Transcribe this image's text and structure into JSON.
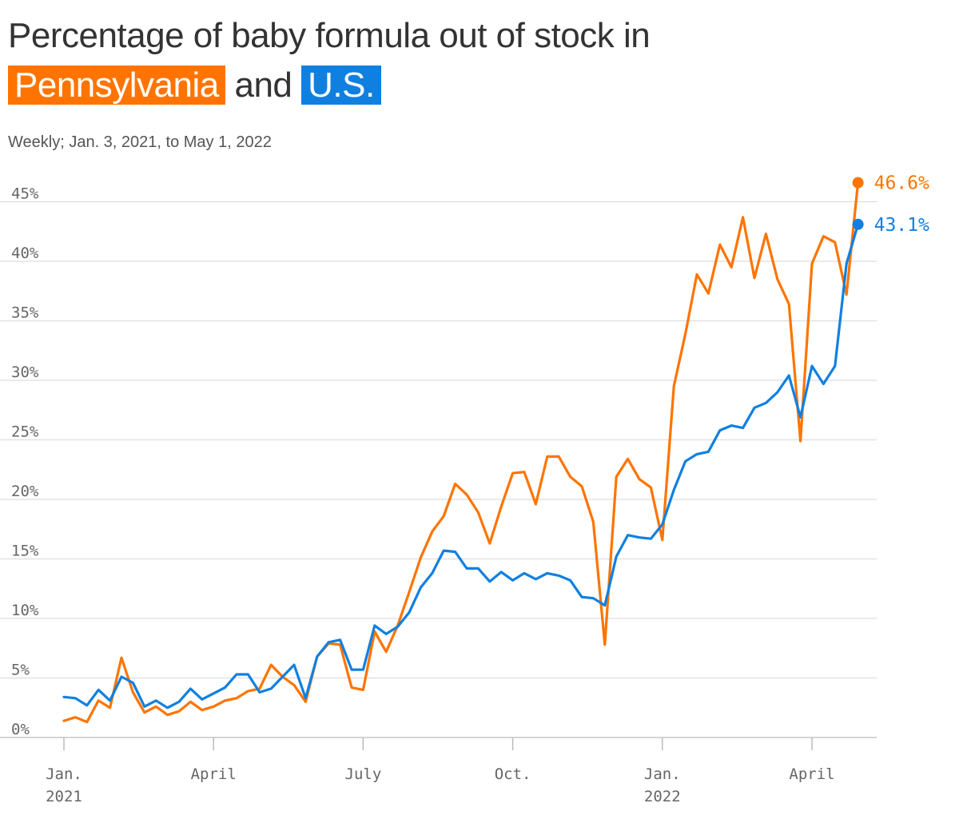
{
  "title": {
    "prefix": "Percentage of baby formula out of stock in",
    "series_a": "Pennsylvania",
    "join": "and",
    "series_b": "U.S."
  },
  "subtitle": "Weekly; Jan. 3, 2021, to May 1, 2022",
  "colors": {
    "pennsylvania": "#ff7400",
    "us": "#1080e0",
    "grid": "#dddddd",
    "text": "#333333"
  },
  "chart_data": {
    "type": "line",
    "x": [
      "2021-01-03",
      "2021-01-10",
      "2021-01-17",
      "2021-01-24",
      "2021-01-31",
      "2021-02-07",
      "2021-02-14",
      "2021-02-21",
      "2021-02-28",
      "2021-03-07",
      "2021-03-14",
      "2021-03-21",
      "2021-03-28",
      "2021-04-04",
      "2021-04-11",
      "2021-04-18",
      "2021-04-25",
      "2021-05-02",
      "2021-05-09",
      "2021-05-16",
      "2021-05-23",
      "2021-05-30",
      "2021-06-06",
      "2021-06-13",
      "2021-06-20",
      "2021-06-27",
      "2021-07-04",
      "2021-07-11",
      "2021-07-18",
      "2021-07-25",
      "2021-08-01",
      "2021-08-08",
      "2021-08-15",
      "2021-08-22",
      "2021-08-29",
      "2021-09-05",
      "2021-09-12",
      "2021-09-19",
      "2021-09-26",
      "2021-10-03",
      "2021-10-10",
      "2021-10-17",
      "2021-10-24",
      "2021-10-31",
      "2021-11-07",
      "2021-11-14",
      "2021-11-21",
      "2021-11-28",
      "2021-12-05",
      "2021-12-12",
      "2021-12-19",
      "2021-12-26",
      "2022-01-02",
      "2022-01-09",
      "2022-01-16",
      "2022-01-23",
      "2022-01-30",
      "2022-02-06",
      "2022-02-13",
      "2022-02-20",
      "2022-02-27",
      "2022-03-06",
      "2022-03-13",
      "2022-03-20",
      "2022-03-27",
      "2022-04-03",
      "2022-04-10",
      "2022-04-17",
      "2022-04-24",
      "2022-05-01"
    ],
    "series": [
      {
        "name": "Pennsylvania",
        "values": [
          1.4,
          1.7,
          1.3,
          3.1,
          2.5,
          6.7,
          3.8,
          2.1,
          2.6,
          1.9,
          2.2,
          3.0,
          2.3,
          2.6,
          3.1,
          3.3,
          3.9,
          4.1,
          6.1,
          5.1,
          4.4,
          3.0,
          6.8,
          7.9,
          7.8,
          4.2,
          4.0,
          8.9,
          7.2,
          9.4,
          12.2,
          15.1,
          17.3,
          18.6,
          21.3,
          20.4,
          18.9,
          16.3,
          19.4,
          22.2,
          22.3,
          19.6,
          23.6,
          23.6,
          21.9,
          21.1,
          18.1,
          7.8,
          21.9,
          23.4,
          21.7,
          21.0,
          16.6,
          29.5,
          33.9,
          38.9,
          37.3,
          41.4,
          39.5,
          43.7,
          38.6,
          42.3,
          38.5,
          36.4,
          24.9,
          39.8,
          42.1,
          41.6,
          37.2,
          46.6
        ]
      },
      {
        "name": "U.S.",
        "values": [
          3.4,
          3.3,
          2.7,
          4.0,
          3.1,
          5.1,
          4.6,
          2.6,
          3.1,
          2.5,
          3.0,
          4.1,
          3.2,
          3.7,
          4.2,
          5.3,
          5.3,
          3.8,
          4.1,
          5.1,
          6.1,
          3.3,
          6.8,
          8.0,
          8.2,
          5.7,
          5.7,
          9.4,
          8.7,
          9.3,
          10.5,
          12.6,
          13.8,
          15.7,
          15.6,
          14.2,
          14.2,
          13.1,
          13.9,
          13.2,
          13.8,
          13.3,
          13.8,
          13.6,
          13.2,
          11.8,
          11.7,
          11.1,
          15.2,
          17.0,
          16.8,
          16.7,
          17.9,
          20.8,
          23.2,
          23.8,
          24.0,
          25.8,
          26.2,
          26.0,
          27.7,
          28.1,
          29.0,
          30.4,
          26.9,
          31.2,
          29.7,
          31.2,
          39.8,
          43.1
        ]
      }
    ],
    "end_labels": [
      "46.6%",
      "43.1%"
    ],
    "yticks": [
      "0%",
      "5%",
      "10%",
      "15%",
      "20%",
      "25%",
      "30%",
      "35%",
      "40%",
      "45%"
    ],
    "ylim": [
      0,
      45
    ],
    "xticks": [
      {
        "line1": "Jan.",
        "line2": "2021",
        "date": "2021-01-03"
      },
      {
        "line1": "April",
        "line2": "",
        "date": "2021-04-04"
      },
      {
        "line1": "July",
        "line2": "",
        "date": "2021-07-04"
      },
      {
        "line1": "Oct.",
        "line2": "",
        "date": "2021-10-03"
      },
      {
        "line1": "Jan.",
        "line2": "2022",
        "date": "2022-01-02"
      },
      {
        "line1": "April",
        "line2": "",
        "date": "2022-04-03"
      }
    ],
    "grid": true
  }
}
